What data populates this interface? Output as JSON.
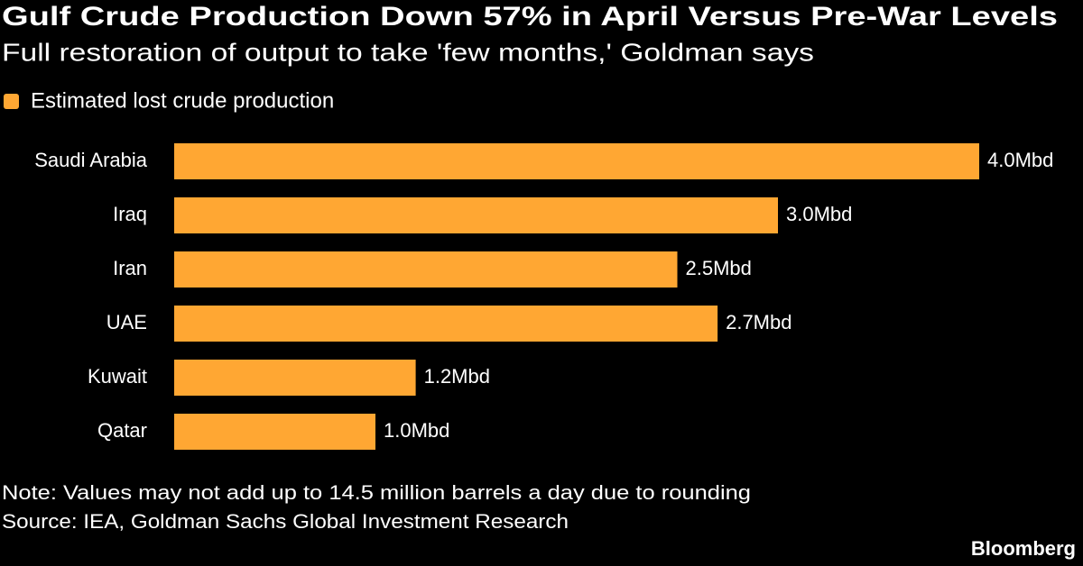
{
  "chart_data": {
    "type": "barh",
    "title": "Gulf Crude Production Down 57% in April Versus Pre-War Levels",
    "subtitle": "Full restoration of output to take 'few months,' Goldman says",
    "categories": [
      "Saudi Arabia",
      "Iraq",
      "Iran",
      "UAE",
      "Kuwait",
      "Qatar"
    ],
    "series": [
      {
        "name": "Estimated lost crude production",
        "color": "#ffa733",
        "values": [
          4.0,
          3.0,
          2.5,
          2.7,
          1.2,
          1.0
        ],
        "value_labels": [
          "4.0Mbd",
          "3.0Mbd",
          "2.5Mbd",
          "2.7Mbd",
          "1.2Mbd",
          "1.0Mbd"
        ]
      }
    ],
    "note": "Note: Values may not add up to 14.5 million barrels a day due to rounding",
    "source": "Source: IEA, Goldman Sachs Global Investment Research",
    "brand": "Bloomberg"
  }
}
